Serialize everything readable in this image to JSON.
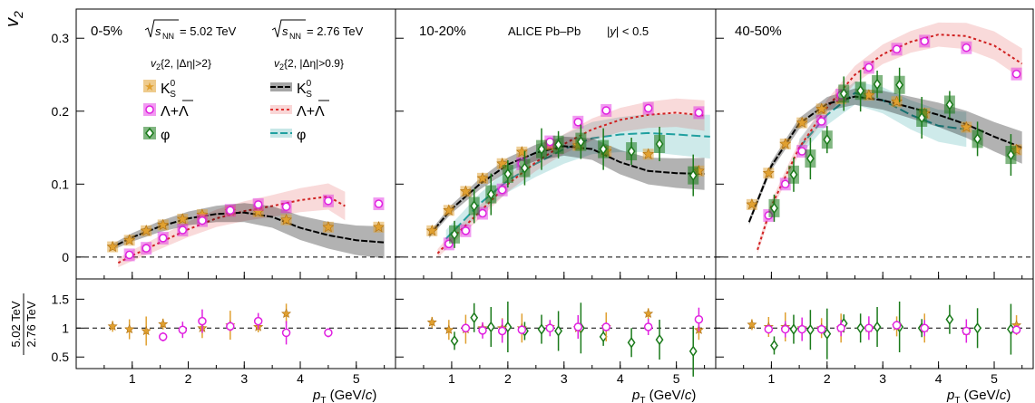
{
  "figure": {
    "y_title_top": "v",
    "y_title_top_sub": "2",
    "y_title_bottom_num": "5.02 TeV",
    "y_title_bottom_den": "2.76 TeV",
    "x_title": "p",
    "x_title_sub": "T",
    "x_title_unit": " (GeV/",
    "x_title_unit_c": "c",
    "x_title_unit_end": ")",
    "experiment_label": "ALICE Pb–Pb",
    "rapidity_label_pre": "|",
    "rapidity_label_y": "y",
    "rapidity_label_post": "| < 0.5",
    "energy_label_1": "= 5.02 TeV",
    "energy_label_2": "= 2.76 TeV",
    "sqrt_label": "s",
    "sqrt_sub": "NN",
    "method_label_1": "{2, |Δη|>2}",
    "method_label_2": "{2, |Δη|>0.9}",
    "legend_k0s": "K",
    "legend_k0s_sup": "0",
    "legend_k0s_sub": "S",
    "legend_lambda": "Λ+Λ",
    "legend_phi": "φ",
    "colors": {
      "k0s": "#e0a030",
      "lambda": "#e020e0",
      "phi": "#1a7a1a",
      "k0s_band": "#000000",
      "lambda_band": "#e03030",
      "phi_band": "#20a0a0"
    }
  },
  "chart_data": [
    {
      "type": "scatter",
      "panel": "top",
      "centrality": "0-5%",
      "xlim": [
        0,
        5.7
      ],
      "ylim": [
        -0.03,
        0.34
      ],
      "yticks": [
        0,
        0.1,
        0.2,
        0.3
      ],
      "xticks": [
        1,
        2,
        3,
        4,
        5
      ],
      "series": [
        {
          "name": "K0S 5.02",
          "x": [
            0.65,
            0.95,
            1.25,
            1.55,
            1.9,
            2.25,
            2.75,
            3.25,
            3.75,
            4.5,
            5.4
          ],
          "y": [
            0.014,
            0.023,
            0.036,
            0.044,
            0.052,
            0.058,
            0.063,
            0.062,
            0.051,
            0.041,
            0.041
          ]
        },
        {
          "name": "Λ+Λ 5.02",
          "x": [
            0.95,
            1.25,
            1.55,
            1.9,
            2.25,
            2.75,
            3.25,
            3.75,
            4.5,
            5.4
          ],
          "y": [
            0.003,
            0.012,
            0.026,
            0.037,
            0.05,
            0.064,
            0.072,
            0.069,
            0.077,
            0.073
          ]
        },
        {
          "name": "φ 5.02",
          "x": [],
          "y": []
        },
        {
          "name": "K0S 2.76",
          "x": [
            0.6,
            1.0,
            1.5,
            2.0,
            2.5,
            3.0,
            3.5,
            4.0,
            4.5,
            5.0,
            5.5
          ],
          "y": [
            0.012,
            0.027,
            0.042,
            0.053,
            0.059,
            0.061,
            0.055,
            0.04,
            0.03,
            0.023,
            0.02
          ]
        },
        {
          "name": "Λ+Λ 2.76",
          "x": [
            0.75,
            1.0,
            1.5,
            2.0,
            2.5,
            3.0,
            3.5,
            4.0,
            4.5,
            4.8
          ],
          "y": [
            -0.008,
            0.002,
            0.02,
            0.038,
            0.053,
            0.063,
            0.07,
            0.078,
            0.083,
            0.07
          ]
        }
      ]
    },
    {
      "type": "scatter",
      "panel": "top",
      "centrality": "10-20%",
      "xlim": [
        0,
        5.7
      ],
      "ylim": [
        -0.03,
        0.34
      ],
      "series": [
        {
          "name": "K0S 5.02",
          "x": [
            0.65,
            0.95,
            1.25,
            1.55,
            1.9,
            2.25,
            2.75,
            3.25,
            3.75,
            4.5,
            5.4
          ],
          "y": [
            0.036,
            0.064,
            0.09,
            0.108,
            0.128,
            0.144,
            0.154,
            0.153,
            0.145,
            0.141,
            0.118
          ]
        },
        {
          "name": "Λ+Λ 5.02",
          "x": [
            0.95,
            1.25,
            1.55,
            1.9,
            2.25,
            2.75,
            3.25,
            3.75,
            4.5,
            5.4
          ],
          "y": [
            0.018,
            0.036,
            0.06,
            0.092,
            0.128,
            0.158,
            0.185,
            0.201,
            0.204,
            0.198
          ]
        },
        {
          "name": "φ 5.02",
          "x": [
            1.05,
            1.4,
            1.7,
            2.0,
            2.3,
            2.6,
            2.9,
            3.3,
            3.7,
            4.2,
            4.7,
            5.3
          ],
          "y": [
            0.031,
            0.07,
            0.086,
            0.114,
            0.122,
            0.148,
            0.154,
            0.158,
            0.148,
            0.145,
            0.155,
            0.112
          ]
        },
        {
          "name": "K0S 2.76",
          "x": [
            0.6,
            1.0,
            1.5,
            2.0,
            2.5,
            3.0,
            3.5,
            4.0,
            4.5,
            5.0,
            5.5
          ],
          "y": [
            0.03,
            0.066,
            0.1,
            0.127,
            0.143,
            0.152,
            0.148,
            0.13,
            0.118,
            0.115,
            0.114
          ]
        },
        {
          "name": "Λ+Λ 2.76",
          "x": [
            0.75,
            1.0,
            1.5,
            2.0,
            2.5,
            3.0,
            3.5,
            4.0,
            4.5,
            5.0,
            5.5
          ],
          "y": [
            0.005,
            0.025,
            0.062,
            0.1,
            0.13,
            0.155,
            0.175,
            0.188,
            0.195,
            0.198,
            0.194
          ]
        },
        {
          "name": "φ 2.76",
          "x": [
            0.9,
            1.5,
            2.0,
            2.5,
            3.0,
            3.5,
            4.0,
            4.5,
            5.0,
            5.6
          ],
          "y": [
            0.025,
            0.073,
            0.105,
            0.128,
            0.148,
            0.163,
            0.168,
            0.17,
            0.168,
            0.165
          ]
        }
      ]
    },
    {
      "type": "scatter",
      "panel": "top",
      "centrality": "40-50%",
      "xlim": [
        0,
        5.7
      ],
      "ylim": [
        -0.03,
        0.34
      ],
      "series": [
        {
          "name": "K0S 5.02",
          "x": [
            0.65,
            0.95,
            1.25,
            1.55,
            1.9,
            2.25,
            2.75,
            3.25,
            3.75,
            4.5,
            5.4
          ],
          "y": [
            0.072,
            0.115,
            0.155,
            0.184,
            0.203,
            0.217,
            0.222,
            0.213,
            0.197,
            0.178,
            0.147
          ]
        },
        {
          "name": "Λ+Λ 5.02",
          "x": [
            0.95,
            1.25,
            1.55,
            1.9,
            2.25,
            2.75,
            3.25,
            3.75,
            4.5,
            5.4
          ],
          "y": [
            0.057,
            0.1,
            0.145,
            0.186,
            0.222,
            0.26,
            0.285,
            0.296,
            0.287,
            0.251
          ]
        },
        {
          "name": "φ 5.02",
          "x": [
            1.05,
            1.4,
            1.7,
            2.0,
            2.3,
            2.6,
            2.9,
            3.3,
            3.7,
            4.2,
            4.7,
            5.3
          ],
          "y": [
            0.067,
            0.113,
            0.135,
            0.161,
            0.224,
            0.228,
            0.237,
            0.236,
            0.191,
            0.209,
            0.162,
            0.14
          ]
        },
        {
          "name": "K0S 2.76",
          "x": [
            0.6,
            1.0,
            1.5,
            2.0,
            2.5,
            3.0,
            3.5,
            4.0,
            4.5,
            5.0,
            5.5
          ],
          "y": [
            0.048,
            0.125,
            0.183,
            0.21,
            0.22,
            0.215,
            0.205,
            0.195,
            0.182,
            0.165,
            0.15
          ]
        },
        {
          "name": "Λ+Λ 2.76",
          "x": [
            0.75,
            1.0,
            1.5,
            2.0,
            2.5,
            3.0,
            3.5,
            4.0,
            4.5,
            5.0,
            5.5
          ],
          "y": [
            0.01,
            0.07,
            0.15,
            0.205,
            0.25,
            0.278,
            0.295,
            0.305,
            0.303,
            0.29,
            0.265
          ]
        },
        {
          "name": "φ 2.76",
          "x": [
            1.5,
            2.0,
            2.5,
            3.0,
            3.5,
            4.0,
            4.5
          ],
          "y": [
            0.15,
            0.195,
            0.225,
            0.215,
            0.195,
            0.18,
            0.175
          ]
        }
      ]
    },
    {
      "type": "scatter",
      "panel": "bottom",
      "centrality": "0-5%",
      "xlim": [
        0,
        5.7
      ],
      "ylim": [
        0.3,
        1.85
      ],
      "yticks": [
        0.5,
        1,
        1.5
      ],
      "series": [
        {
          "name": "K0S ratio",
          "x": [
            0.65,
            0.95,
            1.25,
            1.55,
            2.25,
            2.75,
            3.25,
            3.75
          ],
          "y": [
            1.03,
            0.98,
            0.95,
            1.07,
            1.0,
            1.05,
            1.02,
            1.25
          ]
        },
        {
          "name": "Λ+Λ ratio",
          "x": [
            1.55,
            1.9,
            2.25,
            2.75,
            3.25,
            3.75,
            4.5
          ],
          "y": [
            0.85,
            0.97,
            1.12,
            1.03,
            1.12,
            0.92,
            0.92
          ]
        }
      ]
    },
    {
      "type": "scatter",
      "panel": "bottom",
      "centrality": "10-20%",
      "xlim": [
        0,
        5.7
      ],
      "ylim": [
        0.3,
        1.85
      ],
      "series": [
        {
          "name": "K0S ratio",
          "x": [
            0.65,
            0.95,
            1.25,
            1.55,
            1.9,
            2.25,
            2.75,
            3.25,
            3.75,
            4.5,
            5.4
          ],
          "y": [
            1.1,
            0.97,
            0.98,
            1.0,
            1.0,
            1.0,
            1.02,
            1.0,
            1.02,
            1.25,
            0.97
          ]
        },
        {
          "name": "Λ+Λ ratio",
          "x": [
            1.25,
            1.55,
            1.9,
            2.25,
            2.75,
            3.25,
            3.75,
            4.5,
            5.4
          ],
          "y": [
            1.0,
            0.96,
            0.95,
            0.97,
            1.0,
            1.02,
            1.02,
            1.02,
            1.15
          ]
        },
        {
          "name": "φ ratio",
          "x": [
            1.05,
            1.4,
            1.7,
            2.0,
            2.3,
            2.6,
            2.9,
            3.3,
            3.7,
            4.2,
            4.7,
            5.3
          ],
          "y": [
            0.78,
            1.18,
            1.02,
            1.02,
            0.95,
            0.98,
            0.95,
            1.0,
            0.85,
            0.75,
            0.8,
            0.6
          ]
        }
      ]
    },
    {
      "type": "scatter",
      "panel": "bottom",
      "centrality": "40-50%",
      "xlim": [
        0,
        5.7
      ],
      "ylim": [
        0.3,
        1.85
      ],
      "series": [
        {
          "name": "K0S ratio",
          "x": [
            0.65,
            0.95,
            1.25,
            1.55,
            1.9,
            2.25,
            2.75,
            3.25,
            3.75,
            4.5,
            5.4
          ],
          "y": [
            1.06,
            1.02,
            1.02,
            1.0,
            1.0,
            1.0,
            1.0,
            1.03,
            1.0,
            0.95,
            1.05
          ]
        },
        {
          "name": "Λ+Λ ratio",
          "x": [
            0.95,
            1.25,
            1.55,
            1.9,
            2.25,
            2.75,
            3.25,
            3.75,
            4.5,
            5.4
          ],
          "y": [
            0.98,
            0.98,
            0.98,
            0.98,
            1.0,
            1.0,
            1.05,
            1.0,
            0.95,
            0.97
          ]
        },
        {
          "name": "φ ratio",
          "x": [
            1.05,
            1.4,
            1.7,
            2.0,
            2.3,
            2.6,
            2.9,
            3.3,
            3.7,
            4.2,
            4.7,
            5.3
          ],
          "y": [
            0.7,
            0.98,
            0.97,
            0.9,
            1.08,
            1.0,
            1.02,
            1.02,
            1.0,
            1.15,
            1.0,
            0.98
          ]
        }
      ]
    }
  ]
}
